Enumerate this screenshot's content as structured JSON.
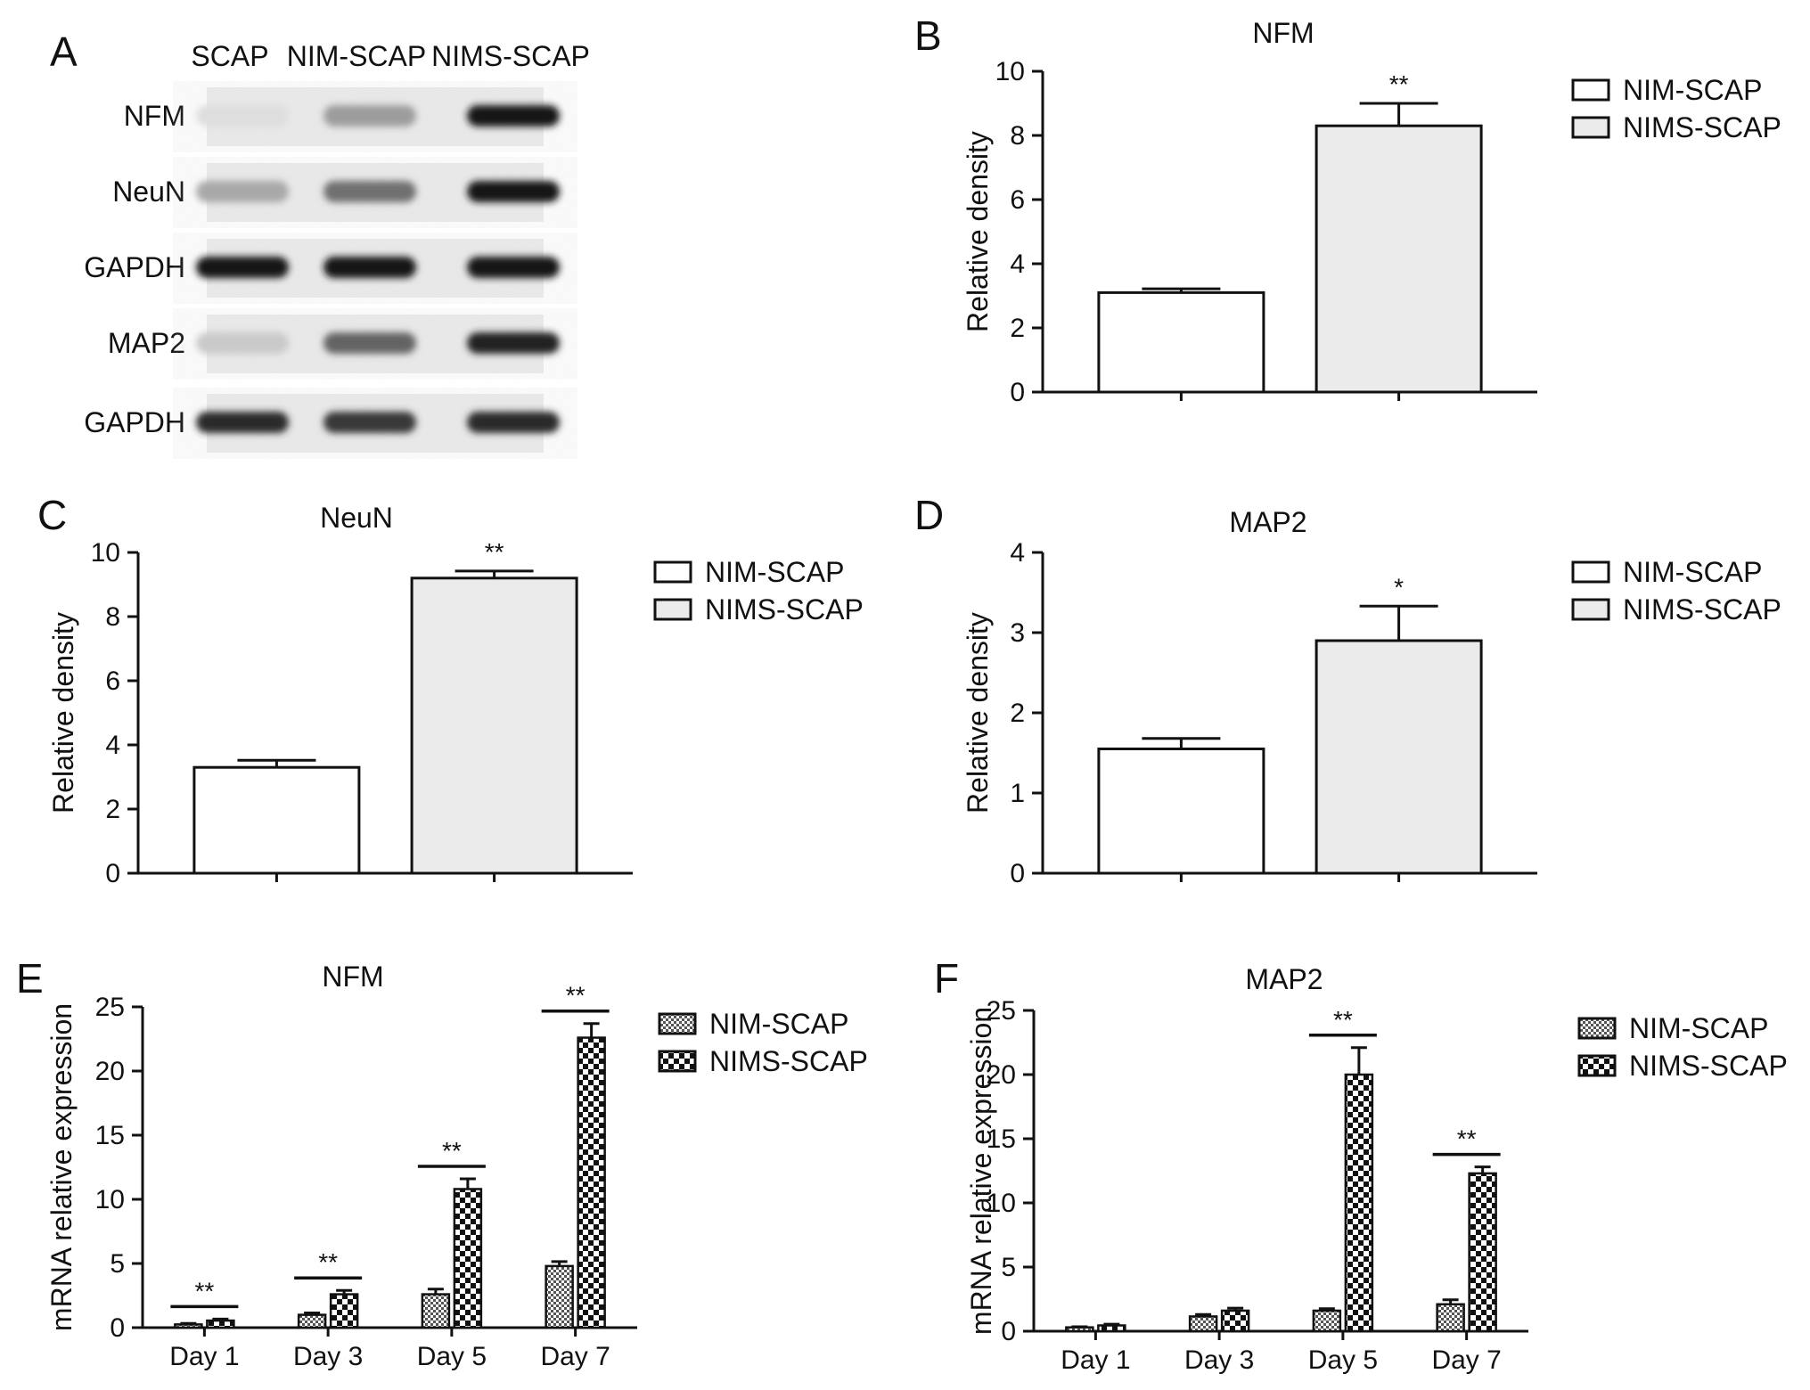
{
  "figure": {
    "panels": [
      "A",
      "B",
      "C",
      "D",
      "E",
      "F"
    ]
  },
  "colors": {
    "nim": "#ffffff",
    "nims": "#ebebeb",
    "axis": "#111111"
  },
  "blot": {
    "panel": "A",
    "lanes": [
      "SCAP",
      "NIM-SCAP",
      "NIMS-SCAP"
    ],
    "rows": [
      {
        "label": "NFM",
        "intensities": [
          0.06,
          0.35,
          0.95
        ]
      },
      {
        "label": "NeuN",
        "intensities": [
          0.3,
          0.55,
          0.95
        ]
      },
      {
        "label": "GAPDH",
        "intensities": [
          0.95,
          0.95,
          0.95
        ]
      },
      {
        "label": "MAP2",
        "intensities": [
          0.15,
          0.6,
          0.9
        ]
      },
      {
        "label": "GAPDH",
        "intensities": [
          0.85,
          0.8,
          0.85
        ]
      }
    ]
  },
  "chart_data": [
    {
      "panel": "B",
      "type": "bar",
      "title": "NFM",
      "ylabel": "Relative density",
      "ylim": [
        0,
        10
      ],
      "yticks": [
        0,
        2,
        4,
        6,
        8,
        10
      ],
      "categories": [
        "NIM-SCAP",
        "NIMS-SCAP"
      ],
      "values": [
        3.1,
        8.3
      ],
      "errors": [
        0.12,
        0.7
      ],
      "significance": [
        "",
        "**"
      ],
      "legend": [
        "NIM-SCAP",
        "NIMS-SCAP"
      ],
      "legend_position": "right"
    },
    {
      "panel": "C",
      "type": "bar",
      "title": "NeuN",
      "ylabel": "Relative density",
      "ylim": [
        0,
        10
      ],
      "yticks": [
        0,
        2,
        4,
        6,
        8,
        10
      ],
      "categories": [
        "NIM-SCAP",
        "NIMS-SCAP"
      ],
      "values": [
        3.3,
        9.2
      ],
      "errors": [
        0.22,
        0.22
      ],
      "significance": [
        "",
        "**"
      ],
      "legend": [
        "NIM-SCAP",
        "NIMS-SCAP"
      ],
      "legend_position": "right"
    },
    {
      "panel": "D",
      "type": "bar",
      "title": "MAP2",
      "ylabel": "Relative density",
      "ylim": [
        0,
        4
      ],
      "yticks": [
        0,
        1,
        2,
        3,
        4
      ],
      "categories": [
        "NIM-SCAP",
        "NIMS-SCAP"
      ],
      "values": [
        1.55,
        2.9
      ],
      "errors": [
        0.13,
        0.43
      ],
      "significance": [
        "",
        "*"
      ],
      "legend": [
        "NIM-SCAP",
        "NIMS-SCAP"
      ],
      "legend_position": "right"
    },
    {
      "panel": "E",
      "type": "bar",
      "title": "NFM",
      "ylabel": "mRNA relative expression",
      "ylim": [
        0,
        25
      ],
      "yticks": [
        0,
        5,
        10,
        15,
        20,
        25
      ],
      "categories": [
        "Day 1",
        "Day 3",
        "Day 5",
        "Day 7"
      ],
      "series": [
        {
          "name": "NIM-SCAP",
          "values": [
            0.25,
            1.0,
            2.6,
            4.8
          ],
          "errors": [
            0.08,
            0.15,
            0.4,
            0.35
          ]
        },
        {
          "name": "NIMS-SCAP",
          "values": [
            0.55,
            2.6,
            10.8,
            22.6
          ],
          "errors": [
            0.12,
            0.3,
            0.8,
            1.1
          ]
        }
      ],
      "significance": [
        "**",
        "**",
        "**",
        "**"
      ],
      "legend_position": "right"
    },
    {
      "panel": "F",
      "type": "bar",
      "title": "MAP2",
      "ylabel": "mRNA relative expression",
      "ylim": [
        0,
        25
      ],
      "yticks": [
        0,
        5,
        10,
        15,
        20,
        25
      ],
      "categories": [
        "Day 1",
        "Day 3",
        "Day 5",
        "Day 7"
      ],
      "series": [
        {
          "name": "NIM-SCAP",
          "values": [
            0.3,
            1.15,
            1.6,
            2.1
          ],
          "errors": [
            0.05,
            0.15,
            0.15,
            0.35
          ]
        },
        {
          "name": "NIMS-SCAP",
          "values": [
            0.45,
            1.6,
            20.0,
            12.3
          ],
          "errors": [
            0.1,
            0.2,
            2.1,
            0.5
          ]
        }
      ],
      "significance": [
        "",
        "",
        "**",
        "**"
      ],
      "legend_position": "right"
    }
  ]
}
